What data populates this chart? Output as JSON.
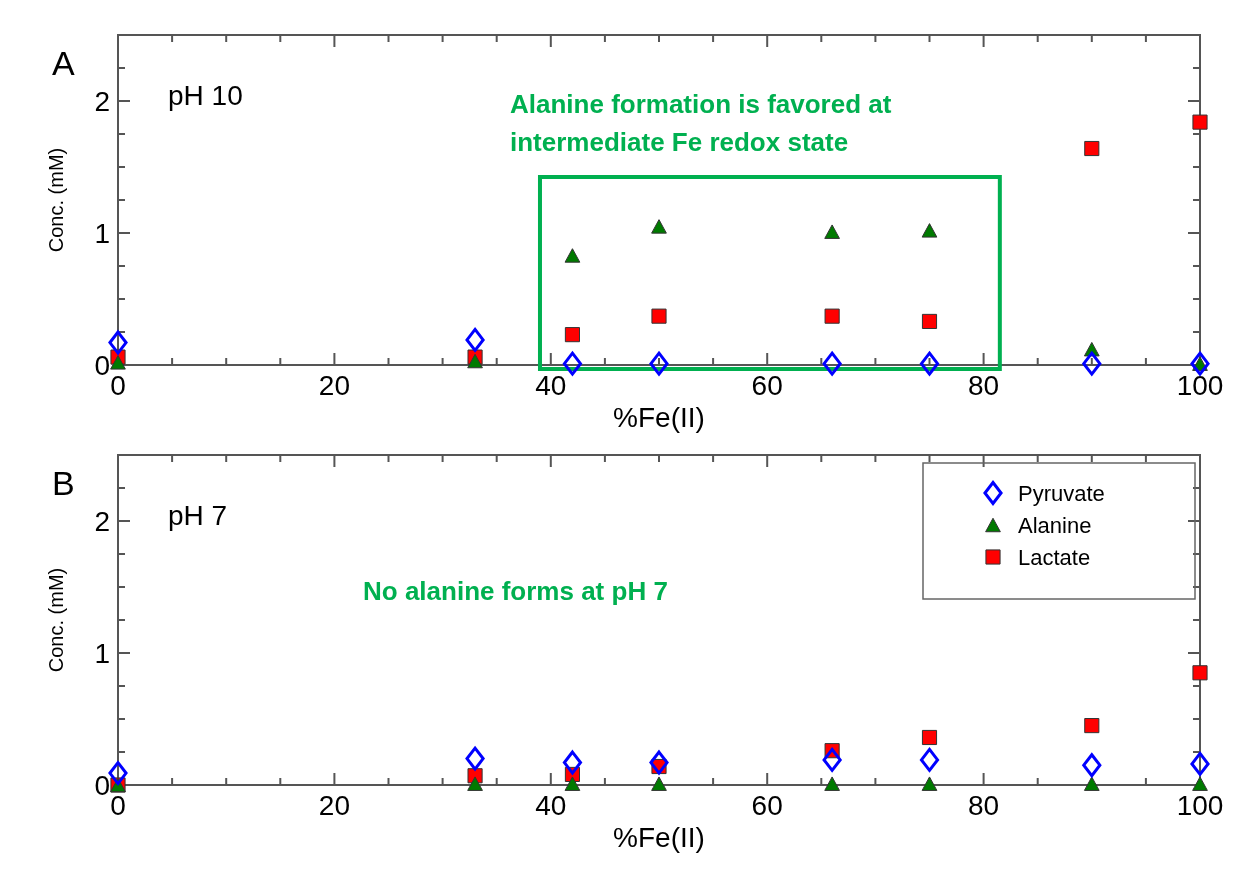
{
  "chart_data": [
    {
      "type": "scatter",
      "title": "A",
      "subtitle": "pH 10",
      "xlabel": "%Fe(II)",
      "ylabel": "Conc. (mM)",
      "x": [
        0,
        33,
        42,
        50,
        66,
        75,
        90,
        100
      ],
      "series": [
        {
          "color": "#0000ff",
          "marker": "diamond",
          "values": [
            0.17,
            0.19,
            0.01,
            0.01,
            0.01,
            0.01,
            0.01,
            0.01
          ]
        },
        {
          "color": "#007a00",
          "marker": "triangle",
          "values": [
            0.02,
            0.03,
            0.83,
            1.05,
            1.01,
            1.02,
            0.12,
            0.01
          ]
        },
        {
          "color": "#ff0000",
          "marker": "square",
          "values": [
            0.06,
            0.06,
            0.23,
            0.37,
            0.37,
            0.33,
            1.64,
            1.84
          ]
        }
      ],
      "xlim": [
        0,
        100
      ],
      "ylim": [
        0,
        2.5
      ],
      "xticks": [
        0,
        {
          "value": 5,
          "label": null
        },
        {
          "value": 10,
          "label": null
        },
        {
          "value": 15,
          "label": null
        },
        20,
        {
          "value": 25,
          "label": null
        },
        {
          "value": 30,
          "label": null
        },
        {
          "value": 35,
          "label": null
        },
        40,
        {
          "value": 45,
          "label": null
        },
        {
          "value": 50,
          "label": null
        },
        {
          "value": 55,
          "label": null
        },
        60,
        {
          "value": 65,
          "label": null
        },
        {
          "value": 70,
          "label": null
        },
        {
          "value": 75,
          "label": null
        },
        80,
        {
          "value": 85,
          "label": null
        },
        {
          "value": 90,
          "label": null
        },
        {
          "value": 95,
          "label": null
        },
        100
      ],
      "yticks": [
        0,
        {
          "value": 0.25,
          "label": null
        },
        {
          "value": 0.5,
          "label": null
        },
        {
          "value": 0.75,
          "label": null
        },
        1,
        {
          "value": 1.25,
          "label": null
        },
        {
          "value": 1.5,
          "label": null
        },
        {
          "value": 1.75,
          "label": null
        },
        2,
        {
          "value": 2.25,
          "label": null
        },
        {
          "value": 2.5,
          "label": null
        }
      ],
      "annotations": [
        "Alanine formation is favored at intermediate Fe redox state"
      ],
      "legend": false,
      "grid": false
    },
    {
      "type": "scatter",
      "title": "B",
      "subtitle": "pH 7",
      "xlabel": "%Fe(II)",
      "ylabel": "Conc. (mM)",
      "x": [
        0,
        33,
        42,
        50,
        66,
        75,
        90,
        100
      ],
      "series": [
        {
          "name": "Pyruvate",
          "color": "#0000ff",
          "marker": "diamond",
          "values": [
            0.09,
            0.2,
            0.17,
            0.17,
            0.19,
            0.19,
            0.15,
            0.16
          ]
        },
        {
          "name": "Alanine",
          "color": "#007a00",
          "marker": "triangle",
          "values": [
            0.0,
            0.01,
            0.01,
            0.01,
            0.01,
            0.01,
            0.01,
            0.01
          ]
        },
        {
          "name": "Lactate",
          "color": "#ff0000",
          "marker": "square",
          "values": [
            0.0,
            0.07,
            0.08,
            0.14,
            0.26,
            0.36,
            0.45,
            0.85
          ]
        }
      ],
      "xlim": [
        0,
        100
      ],
      "ylim": [
        0,
        2.5
      ],
      "xticks": [
        0,
        {
          "value": 5,
          "label": null
        },
        {
          "value": 10,
          "label": null
        },
        {
          "value": 15,
          "label": null
        },
        20,
        {
          "value": 25,
          "label": null
        },
        {
          "value": 30,
          "label": null
        },
        {
          "value": 35,
          "label": null
        },
        40,
        {
          "value": 45,
          "label": null
        },
        {
          "value": 50,
          "label": null
        },
        {
          "value": 55,
          "label": null
        },
        60,
        {
          "value": 65,
          "label": null
        },
        {
          "value": 70,
          "label": null
        },
        {
          "value": 75,
          "label": null
        },
        80,
        {
          "value": 85,
          "label": null
        },
        {
          "value": 90,
          "label": null
        },
        {
          "value": 95,
          "label": null
        },
        100
      ],
      "yticks": [
        0,
        {
          "value": 0.25,
          "label": null
        },
        {
          "value": 0.5,
          "label": null
        },
        {
          "value": 0.75,
          "label": null
        },
        1,
        {
          "value": 1.25,
          "label": null
        },
        {
          "value": 1.5,
          "label": null
        },
        {
          "value": 1.75,
          "label": null
        },
        2,
        {
          "value": 2.25,
          "label": null
        },
        {
          "value": 2.5,
          "label": null
        }
      ],
      "annotations": [
        "No alanine forms at pH 7"
      ],
      "legend": "top right",
      "grid": false
    }
  ]
}
